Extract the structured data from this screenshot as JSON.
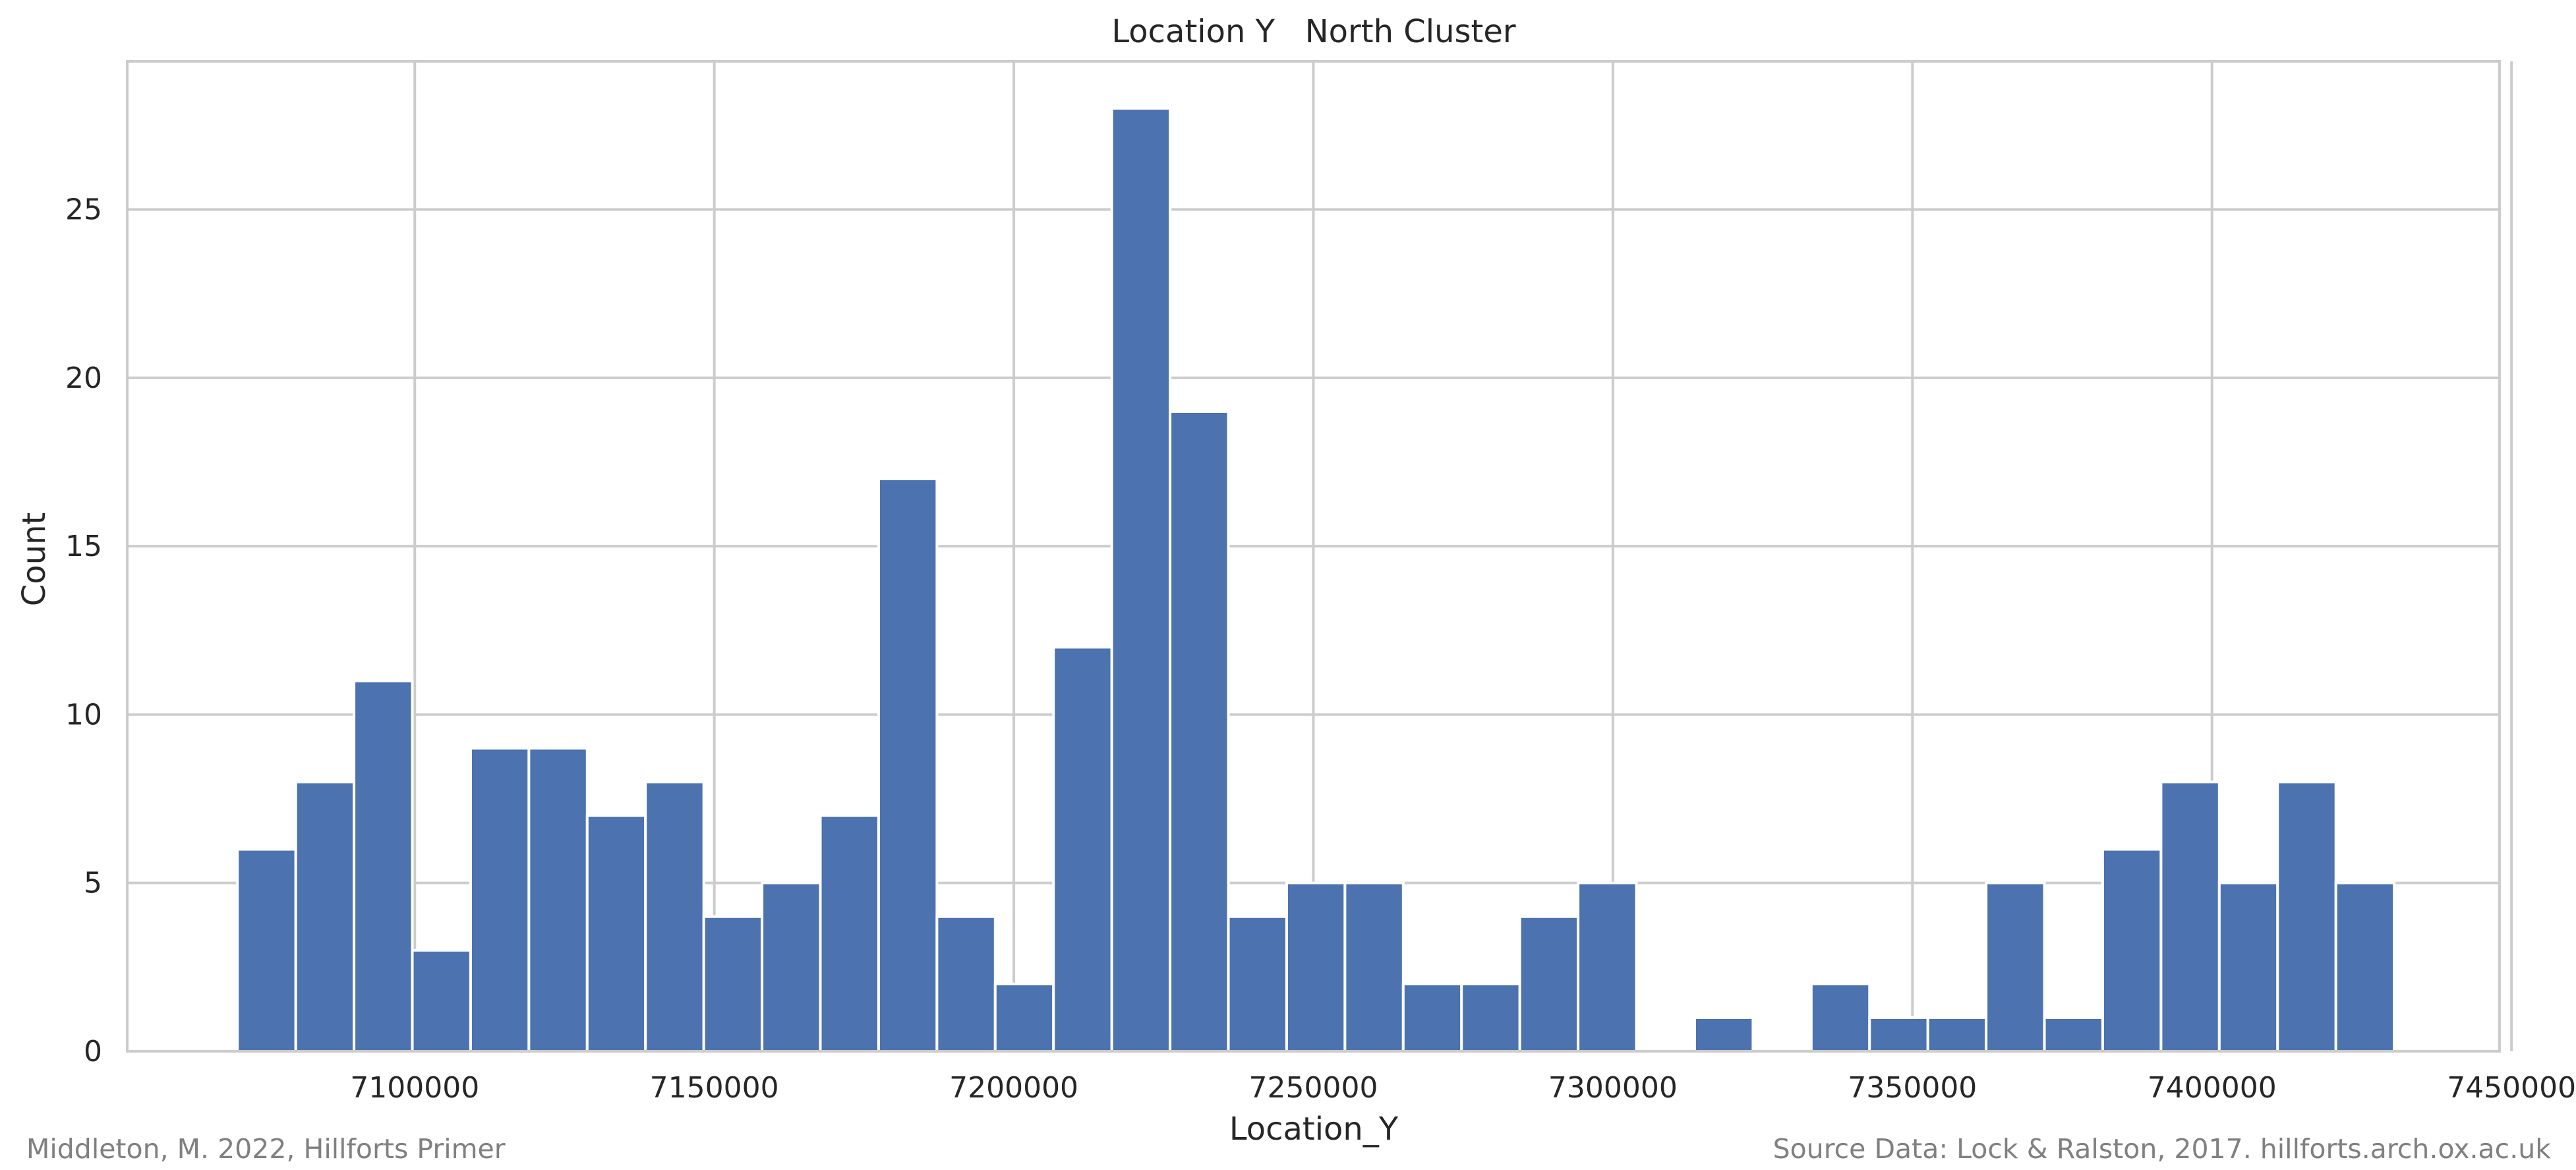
{
  "chart_data": {
    "type": "bar",
    "title": "Location Y   North Cluster",
    "xlabel": "Location_Y",
    "ylabel": "Count",
    "xlim": [
      7052000,
      7448000
    ],
    "ylim": [
      0,
      29.4
    ],
    "xticks": [
      7100000,
      7150000,
      7200000,
      7250000,
      7300000,
      7350000,
      7400000,
      7450000
    ],
    "yticks": [
      0,
      5,
      10,
      15,
      20,
      25
    ],
    "grid": true,
    "legend": "none",
    "bar_color": "#4c72b0",
    "bin_start": 7070400,
    "bin_width": 9730,
    "counts": [
      6,
      8,
      11,
      3,
      9,
      9,
      7,
      8,
      4,
      5,
      7,
      17,
      4,
      2,
      12,
      28,
      19,
      4,
      5,
      5,
      2,
      2,
      4,
      5,
      0,
      1,
      0,
      2,
      1,
      1,
      5,
      1,
      6,
      8,
      5,
      8,
      5
    ]
  },
  "footer": {
    "left": "Middleton, M. 2022, Hillforts Primer",
    "right": "Source Data: Lock & Ralston, 2017. hillforts.arch.ox.ac.uk"
  }
}
